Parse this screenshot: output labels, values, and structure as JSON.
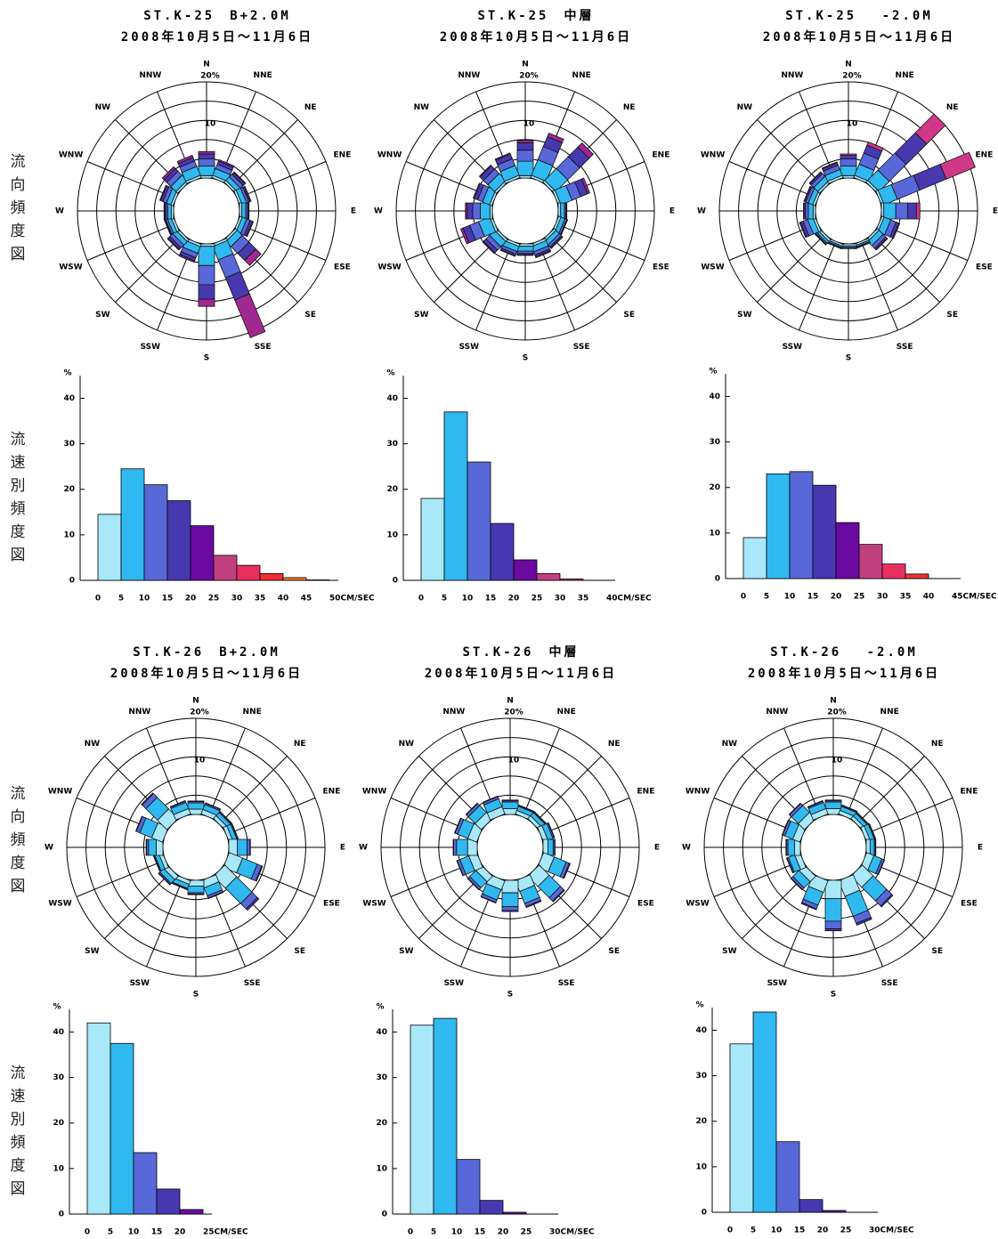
{
  "side_labels": {
    "rose": "流向頻度図",
    "speed": "流速別頻度図"
  },
  "chart_data": [
    {
      "type": "rose",
      "title": "ST.K-25　B+2.0M",
      "subtitle": "2008年10月5日～11月6日",
      "directions": [
        "N",
        "NNE",
        "NE",
        "ENE",
        "E",
        "ESE",
        "SE",
        "SSE",
        "S",
        "SSW",
        "SW",
        "WSW",
        "W",
        "WNW",
        "NW",
        "NNW"
      ],
      "rlim": [
        0,
        20
      ],
      "rings": [
        0,
        4,
        8,
        12,
        16,
        20
      ],
      "rticks": [
        {
          "value": 10,
          "label": "10"
        },
        {
          "value": 20,
          "label": "20%"
        }
      ],
      "series": [
        {
          "color": "#a8e8f8",
          "values": [
            0.5,
            0.5,
            0.5,
            0.5,
            0.5,
            0.5,
            0.5,
            0.5,
            0.5,
            0.5,
            0.5,
            0.5,
            0.5,
            0.5,
            0.5,
            0.5
          ]
        },
        {
          "color": "#30b8f0",
          "values": [
            2,
            1.5,
            1,
            1,
            0.8,
            1,
            1.5,
            3,
            4,
            1.5,
            1,
            0.8,
            0.7,
            1,
            1.5,
            2
          ]
        },
        {
          "color": "#5868d8",
          "values": [
            1.5,
            1,
            0.8,
            0.5,
            0.4,
            0.8,
            2,
            4,
            4,
            1,
            0.8,
            0.4,
            0.4,
            0.8,
            1.2,
            1.2
          ]
        },
        {
          "color": "#4838b0",
          "values": [
            1,
            0.7,
            0.5,
            0.3,
            0.2,
            0.5,
            2,
            5,
            3,
            0.7,
            0.5,
            0.2,
            0.3,
            0.5,
            0.8,
            0.8
          ]
        },
        {
          "color": "#a02890",
          "values": [
            0.5,
            0.3,
            0.2,
            0.2,
            0.1,
            0.2,
            1.5,
            8.5,
            1.5,
            0.3,
            0.2,
            0.1,
            0.1,
            0.2,
            0.5,
            0.5
          ]
        }
      ]
    },
    {
      "type": "rose",
      "title": "ST.K-25　中層",
      "subtitle": "2008年10月5日～11月6日",
      "directions": [
        "N",
        "NNE",
        "NE",
        "ENE",
        "E",
        "ESE",
        "SE",
        "SSE",
        "S",
        "SSW",
        "SW",
        "WSW",
        "W",
        "WNW",
        "NW",
        "NNW"
      ],
      "rlim": [
        0,
        20
      ],
      "rings": [
        0,
        4,
        8,
        12,
        16,
        20
      ],
      "rticks": [
        {
          "value": 10,
          "label": "10"
        },
        {
          "value": 20,
          "label": "20%"
        }
      ],
      "series": [
        {
          "color": "#a8e8f8",
          "values": [
            0.5,
            0.5,
            0.5,
            0.5,
            0.5,
            0.5,
            0.5,
            0.5,
            0.5,
            0.5,
            0.5,
            0.5,
            0.5,
            0.5,
            0.5,
            0.5
          ]
        },
        {
          "color": "#30b8f0",
          "values": [
            3,
            3.5,
            3.5,
            2.5,
            0.8,
            0.9,
            1,
            1.2,
            1,
            1.1,
            1.5,
            2.5,
            2,
            1.6,
            2,
            2.2
          ]
        },
        {
          "color": "#5868d8",
          "values": [
            2.3,
            3,
            3.5,
            2,
            0.3,
            0.4,
            0.6,
            0.7,
            0.5,
            0.6,
            1,
            2,
            1.6,
            1.1,
            1.3,
            1.5
          ]
        },
        {
          "color": "#4838b0",
          "values": [
            1.5,
            2.2,
            2.8,
            1.5,
            0.15,
            0.15,
            0.3,
            0.4,
            0.3,
            0.4,
            0.8,
            1.5,
            1.2,
            0.8,
            1,
            1.1
          ]
        },
        {
          "color": "#a02890",
          "values": [
            0.5,
            0.8,
            1.2,
            0.5,
            0.05,
            0.05,
            0.1,
            0.2,
            0.1,
            0.1,
            0.2,
            0.5,
            0.3,
            0.2,
            0.2,
            0.2
          ]
        }
      ]
    },
    {
      "type": "rose",
      "title": "ST.K-25　 -2.0M",
      "subtitle": "2008年10月5日～11月6日",
      "directions": [
        "N",
        "NNE",
        "NE",
        "ENE",
        "E",
        "ESE",
        "SE",
        "SSE",
        "S",
        "SSW",
        "SW",
        "WSW",
        "W",
        "WNW",
        "NW",
        "NNW"
      ],
      "rlim": [
        0,
        20
      ],
      "rings": [
        0,
        4,
        8,
        12,
        16,
        20
      ],
      "rticks": [
        {
          "value": 10,
          "label": "10"
        },
        {
          "value": 20,
          "label": "20%"
        }
      ],
      "series": [
        {
          "color": "#a8e8f8",
          "values": [
            0.5,
            0.5,
            0.5,
            0.5,
            0.5,
            0.5,
            0.5,
            0.4,
            0.4,
            0.4,
            0.5,
            0.5,
            0.5,
            0.5,
            0.5,
            0.5
          ]
        },
        {
          "color": "#30b8f0",
          "values": [
            2,
            2.5,
            3,
            3,
            2.5,
            1.5,
            1.2,
            0.3,
            0.3,
            0.3,
            0.5,
            1.2,
            1,
            1,
            1.2,
            1.3
          ]
        },
        {
          "color": "#5868d8",
          "values": [
            1.5,
            2.5,
            5,
            5,
            2.5,
            1.2,
            0.8,
            0.2,
            0.2,
            0.2,
            0.3,
            1,
            0.6,
            0.6,
            0.8,
            1
          ]
        },
        {
          "color": "#4838b0",
          "values": [
            0.7,
            1.8,
            6,
            6,
            1.8,
            0.6,
            0.4,
            0.05,
            0.05,
            0.05,
            0.1,
            0.6,
            0.3,
            0.3,
            0.4,
            0.5
          ]
        },
        {
          "color": "#d03888",
          "values": [
            0.3,
            0.7,
            5.5,
            6.5,
            0.7,
            0.2,
            0.1,
            0.05,
            0.05,
            0.05,
            0.1,
            0.2,
            0.1,
            0.1,
            0.1,
            0.2
          ]
        }
      ]
    },
    {
      "type": "histogram",
      "y_unit": "%",
      "bins": [
        0,
        5,
        10,
        15,
        20,
        25,
        30,
        35,
        40,
        45,
        50
      ],
      "counts": [
        14.5,
        24.5,
        21,
        17.5,
        12,
        5.5,
        3.3,
        1.5,
        0.6,
        0.1
      ],
      "colors": [
        "#a8e8f8",
        "#30b8f0",
        "#5868d8",
        "#4838b0",
        "#6a0aa0",
        "#c04080",
        "#e83060",
        "#f03030",
        "#f08030",
        "#f0a040"
      ],
      "ylim": [
        0,
        44
      ],
      "yticks": [
        0,
        10,
        20,
        30,
        40
      ],
      "xticks": [
        0,
        5,
        10,
        15,
        20,
        25,
        30,
        35,
        40,
        45,
        {
          "value": 50,
          "label": "50CM/SEC"
        }
      ]
    },
    {
      "type": "histogram",
      "y_unit": "%",
      "bins": [
        0,
        5,
        10,
        15,
        20,
        25,
        30,
        35,
        40
      ],
      "counts": [
        18,
        37,
        26,
        12.5,
        4.5,
        1.5,
        0.3,
        0
      ],
      "colors": [
        "#a8e8f8",
        "#30b8f0",
        "#5868d8",
        "#4838b0",
        "#6a0aa0",
        "#c04080",
        "#e83060",
        "#f03030"
      ],
      "ylim": [
        0,
        44
      ],
      "yticks": [
        0,
        10,
        20,
        30,
        40
      ],
      "xticks": [
        0,
        5,
        10,
        15,
        20,
        25,
        30,
        35,
        {
          "value": 40,
          "label": "40CM/SEC"
        }
      ]
    },
    {
      "type": "histogram",
      "y_unit": "%",
      "bins": [
        0,
        5,
        10,
        15,
        20,
        25,
        30,
        35,
        40,
        45
      ],
      "counts": [
        9,
        23,
        23.5,
        20.5,
        12.3,
        7.5,
        3.2,
        1,
        0
      ],
      "colors": [
        "#a8e8f8",
        "#30b8f0",
        "#5868d8",
        "#4838b0",
        "#6a0aa0",
        "#c04080",
        "#e83060",
        "#f03030",
        "#f08030"
      ],
      "ylim": [
        0,
        44
      ],
      "yticks": [
        0,
        10,
        20,
        30,
        40
      ],
      "xticks": [
        0,
        5,
        10,
        15,
        20,
        25,
        30,
        35,
        40,
        {
          "value": 45,
          "label": "45CM/SEC"
        }
      ]
    },
    {
      "type": "rose",
      "title": "ST.K-26　B+2.0M",
      "subtitle": "2008年10月5日～11月6日",
      "directions": [
        "N",
        "NNE",
        "NE",
        "ENE",
        "E",
        "ESE",
        "SE",
        "SSE",
        "S",
        "SSW",
        "SW",
        "WSW",
        "W",
        "WNW",
        "NW",
        "NNW"
      ],
      "rlim": [
        0,
        20
      ],
      "rings": [
        0,
        4,
        8,
        12,
        16,
        20
      ],
      "rticks": [
        {
          "value": 10,
          "label": "10"
        },
        {
          "value": 20,
          "label": "20%"
        }
      ],
      "series": [
        {
          "color": "#a8e8f8",
          "values": [
            1.1,
            1,
            0.8,
            0.8,
            1.8,
            3,
            3.5,
            1.6,
            1.2,
            0.8,
            1,
            0.8,
            1.4,
            2.4,
            2.8,
            1.2
          ]
        },
        {
          "color": "#30b8f0",
          "values": [
            1.3,
            1.1,
            0.9,
            0.9,
            2,
            3.3,
            4.5,
            1.8,
            1.4,
            0.9,
            1.1,
            0.9,
            1.6,
            2.7,
            3.4,
            1.4
          ]
        },
        {
          "color": "#5868d8",
          "values": [
            0.3,
            0.3,
            0.2,
            0.2,
            0.6,
            1,
            1.6,
            0.5,
            0.3,
            0.2,
            0.3,
            0.2,
            0.4,
            0.8,
            1.1,
            0.3
          ]
        },
        {
          "color": "#4838b0",
          "values": [
            0.1,
            0.1,
            0.1,
            0.1,
            0.1,
            0.2,
            0.4,
            0.1,
            0.1,
            0.1,
            0.1,
            0.1,
            0.1,
            0.1,
            0.2,
            0.1
          ]
        }
      ]
    },
    {
      "type": "rose",
      "title": "ST.K-26　中層",
      "subtitle": "2008年10月5日～11月6日",
      "directions": [
        "N",
        "NNE",
        "NE",
        "ENE",
        "E",
        "ESE",
        "SE",
        "SSE",
        "S",
        "SSW",
        "SW",
        "WSW",
        "W",
        "WNW",
        "NW",
        "NNW"
      ],
      "rlim": [
        0,
        20
      ],
      "rings": [
        0,
        4,
        8,
        12,
        16,
        20
      ],
      "rticks": [
        {
          "value": 10,
          "label": "10"
        },
        {
          "value": 20,
          "label": "20%"
        }
      ],
      "series": [
        {
          "color": "#a8e8f8",
          "values": [
            1.2,
            0.8,
            0.8,
            1,
            1,
            2.4,
            3,
            2.4,
            2.6,
            2,
            1.6,
            1.8,
            2,
            2,
            1.8,
            1.6
          ]
        },
        {
          "color": "#30b8f0",
          "values": [
            1.4,
            0.9,
            0.9,
            1.1,
            1.1,
            2.7,
            3.3,
            2.7,
            2.9,
            2.3,
            1.8,
            2,
            2.3,
            2.3,
            2,
            1.8
          ]
        },
        {
          "color": "#5868d8",
          "values": [
            0.3,
            0.2,
            0.2,
            0.3,
            0.3,
            0.7,
            1,
            0.7,
            0.8,
            0.6,
            0.5,
            0.6,
            0.6,
            0.6,
            0.6,
            0.5
          ]
        },
        {
          "color": "#4838b0",
          "values": [
            0.1,
            0.1,
            0.1,
            0.1,
            0.1,
            0.2,
            0.2,
            0.2,
            0.2,
            0.1,
            0.1,
            0.1,
            0.1,
            0.1,
            0.1,
            0.1
          ]
        }
      ]
    },
    {
      "type": "rose",
      "title": "ST.K-26　 -2.0M",
      "subtitle": "2008年10月5日～11月6日",
      "directions": [
        "N",
        "NNE",
        "NE",
        "ENE",
        "E",
        "ESE",
        "SE",
        "SSE",
        "S",
        "SSW",
        "SW",
        "WSW",
        "W",
        "WNW",
        "NW",
        "NNW"
      ],
      "rlim": [
        0,
        20
      ],
      "rings": [
        0,
        4,
        8,
        12,
        16,
        20
      ],
      "rticks": [
        {
          "value": 10,
          "label": "10"
        },
        {
          "value": 20,
          "label": "20%"
        }
      ],
      "series": [
        {
          "color": "#a8e8f8",
          "values": [
            1.2,
            0.8,
            0.7,
            0.8,
            0.8,
            1.6,
            3.2,
            3.5,
            3.8,
            2.6,
            1.6,
            1.2,
            1.2,
            1.6,
            1.8,
            1.2
          ]
        },
        {
          "color": "#30b8f0",
          "values": [
            1.4,
            0.9,
            0.8,
            0.9,
            0.9,
            1.8,
            4,
            4.5,
            4.7,
            2.9,
            1.8,
            1.4,
            1.4,
            1.8,
            2,
            1.4
          ]
        },
        {
          "color": "#5868d8",
          "values": [
            0.3,
            0.2,
            0.2,
            0.2,
            0.2,
            0.5,
            1.5,
            1.6,
            1.6,
            0.8,
            0.5,
            0.3,
            0.3,
            0.5,
            0.6,
            0.3
          ]
        },
        {
          "color": "#4838b0",
          "values": [
            0.1,
            0.1,
            0.1,
            0.1,
            0.1,
            0.1,
            0.3,
            0.4,
            0.4,
            0.2,
            0.1,
            0.1,
            0.1,
            0.1,
            0.1,
            0.1
          ]
        }
      ]
    },
    {
      "type": "histogram",
      "y_unit": "%",
      "bins": [
        0,
        5,
        10,
        15,
        20,
        25
      ],
      "counts": [
        42,
        37.5,
        13.5,
        5.5,
        1
      ],
      "colors": [
        "#a8e8f8",
        "#30b8f0",
        "#5868d8",
        "#4838b0",
        "#6a0aa0"
      ],
      "ylim": [
        0,
        44
      ],
      "yticks": [
        0,
        10,
        20,
        30,
        40
      ],
      "xticks": [
        0,
        5,
        10,
        15,
        20,
        {
          "value": 25,
          "label": "25CM/SEC"
        }
      ]
    },
    {
      "type": "histogram",
      "y_unit": "%",
      "bins": [
        0,
        5,
        10,
        15,
        20,
        25,
        30
      ],
      "counts": [
        41.5,
        43,
        12,
        3,
        0.4,
        0
      ],
      "colors": [
        "#a8e8f8",
        "#30b8f0",
        "#5868d8",
        "#4838b0",
        "#6a0aa0",
        "#c04080"
      ],
      "ylim": [
        0,
        44
      ],
      "yticks": [
        0,
        10,
        20,
        30,
        40
      ],
      "xticks": [
        0,
        5,
        10,
        15,
        20,
        25,
        {
          "value": 30,
          "label": "30CM/SEC"
        }
      ]
    },
    {
      "type": "histogram",
      "y_unit": "%",
      "bins": [
        0,
        5,
        10,
        15,
        20,
        25,
        30
      ],
      "counts": [
        37,
        44,
        15.5,
        2.8,
        0.4,
        0
      ],
      "colors": [
        "#a8e8f8",
        "#30b8f0",
        "#5868d8",
        "#4838b0",
        "#6a0aa0",
        "#c04080"
      ],
      "ylim": [
        0,
        44
      ],
      "yticks": [
        0,
        10,
        20,
        30,
        40
      ],
      "xticks": [
        0,
        5,
        10,
        15,
        20,
        25,
        {
          "value": 30,
          "label": "30CM/SEC"
        }
      ]
    }
  ]
}
